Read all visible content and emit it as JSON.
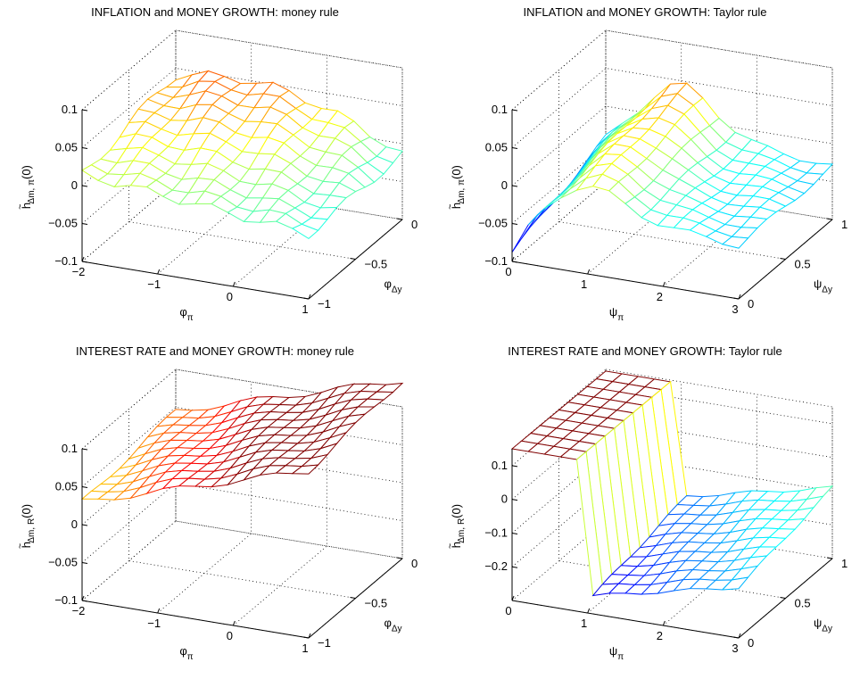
{
  "chart_data": [
    {
      "type": "surface3d",
      "title": "INFLATION and MONEY GROWTH: money rule",
      "xlabel": "φ",
      "xlabel_sub": "π",
      "ylabel": "φ",
      "ylabel_sub": "Δy",
      "zlabel": "h",
      "zlabel_sub": "Δm, π",
      "zlabel_suffix": "(0)",
      "xlim": [
        -2,
        1
      ],
      "ylim": [
        -1,
        0
      ],
      "zlim": [
        -0.1,
        0.1
      ],
      "xticks": [
        "−2",
        "−1",
        "0",
        "1"
      ],
      "yticks": [
        "−1",
        "−0.5",
        "0"
      ],
      "zticks": [
        "−0.1",
        "−0.05",
        "0",
        "0.05",
        "0.1"
      ],
      "grid": true,
      "colormap": "jet",
      "surface_description": "nearly flat surface near 0; positive (~0.04) at low phi_pi, negative (~-0.04) near phi_pi=0.5..1",
      "samples": [
        {
          "x": -2,
          "y": 0,
          "z": 0.0
        },
        {
          "x": -1.5,
          "y": -0.5,
          "z": 0.04
        },
        {
          "x": -0.5,
          "y": -0.5,
          "z": 0.0
        },
        {
          "x": 0.5,
          "y": -0.5,
          "z": -0.04
        },
        {
          "x": 1,
          "y": 0,
          "z": 0.02
        }
      ]
    },
    {
      "type": "surface3d",
      "title": "INFLATION and MONEY GROWTH: Taylor rule",
      "xlabel": "ψ",
      "xlabel_sub": "π",
      "ylabel": "ψ",
      "ylabel_sub": "Δy",
      "zlabel": "h",
      "zlabel_sub": "Δm, π",
      "zlabel_suffix": "(0)",
      "xlim": [
        0,
        3
      ],
      "ylim": [
        0,
        1
      ],
      "zlim": [
        -0.1,
        0.1
      ],
      "xticks": [
        "0",
        "1",
        "2",
        "3"
      ],
      "yticks": [
        "0",
        "0.5",
        "1"
      ],
      "zticks": [
        "−0.1",
        "−0.05",
        "0",
        "0.05",
        "0.1"
      ],
      "grid": true,
      "colormap": "jet",
      "surface_description": "ridge near psi_pi=1 (~0.06), low at psi_pi=0 (~-0.09), declining toward psi_pi=3",
      "samples": [
        {
          "x": 0,
          "y": 0,
          "z": -0.09
        },
        {
          "x": 1,
          "y": 1,
          "z": 0.06
        },
        {
          "x": 2,
          "y": 0.5,
          "z": -0.02
        },
        {
          "x": 3,
          "y": 0,
          "z": -0.06
        }
      ]
    },
    {
      "type": "surface3d",
      "title": "INTEREST RATE and MONEY GROWTH: money rule",
      "xlabel": "φ",
      "xlabel_sub": "π",
      "ylabel": "φ",
      "ylabel_sub": "Δy",
      "zlabel": "h",
      "zlabel_sub": "Δm, R",
      "zlabel_suffix": "(0)",
      "xlim": [
        -2,
        1
      ],
      "ylim": [
        -1,
        0
      ],
      "zlim": [
        -0.1,
        0.1
      ],
      "xticks": [
        "−2",
        "−1",
        "0",
        "1"
      ],
      "yticks": [
        "−1",
        "−0.5",
        "0"
      ],
      "zticks": [
        "−0.1",
        "−0.05",
        "0",
        "0.05",
        "0.1"
      ],
      "grid": true,
      "colormap": "jet",
      "surface_description": "tilted plane rising from ~0.03 at phi_pi=-2 to ~0.12 at phi_pi=1",
      "samples": [
        {
          "x": -2,
          "y": -1,
          "z": 0.03
        },
        {
          "x": -0.5,
          "y": -0.5,
          "z": 0.07
        },
        {
          "x": 1,
          "y": 0,
          "z": 0.12
        }
      ]
    },
    {
      "type": "surface3d",
      "title": "INTEREST RATE and MONEY GROWTH: Taylor rule",
      "xlabel": "ψ",
      "xlabel_sub": "π",
      "ylabel": "ψ",
      "ylabel_sub": "Δy",
      "zlabel": "h",
      "zlabel_sub": "Δm, R",
      "zlabel_suffix": "(0)",
      "xlim": [
        0,
        3
      ],
      "ylim": [
        0,
        1
      ],
      "zlim": [
        -0.3,
        0.15
      ],
      "xticks": [
        "0",
        "1",
        "2",
        "3"
      ],
      "yticks": [
        "0",
        "0.5",
        "1"
      ],
      "zticks": [
        "−0.2",
        "−0.1",
        "0",
        "0.1"
      ],
      "grid": true,
      "colormap": "jet",
      "surface_description": "plateau ~0.15 for psi_pi<1, sharp drop to ~-0.25 at psi_pi=1, then rising toward -0.1 at psi_pi=3",
      "samples": [
        {
          "x": 0,
          "y": 0,
          "z": 0.15
        },
        {
          "x": 0.9,
          "y": 0.5,
          "z": 0.15
        },
        {
          "x": 1.1,
          "y": 0.5,
          "z": -0.25
        },
        {
          "x": 3,
          "y": 1,
          "z": -0.1
        }
      ]
    }
  ]
}
